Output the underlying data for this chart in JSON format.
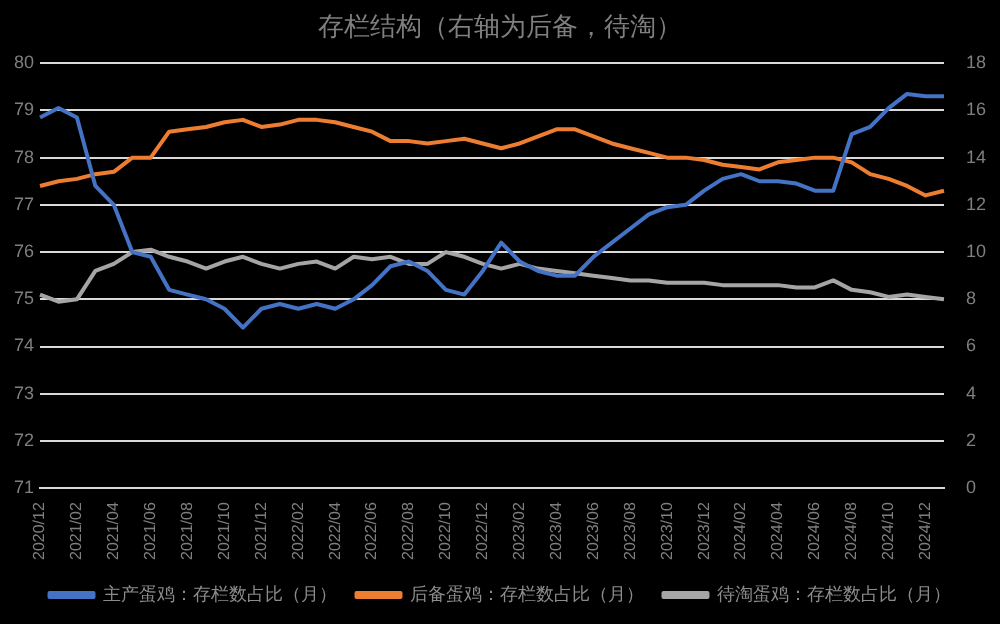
{
  "chart_data": {
    "type": "line",
    "title": "存栏结构（右轴为后备，待淘）",
    "categories": [
      "2020/12",
      null,
      "2021/02",
      null,
      "2021/04",
      null,
      "2021/06",
      null,
      "2021/08",
      null,
      "2021/10",
      null,
      "2021/12",
      null,
      "2022/02",
      null,
      "2022/04",
      null,
      "2022/06",
      null,
      "2022/08",
      null,
      "2022/10",
      null,
      "2022/12",
      null,
      "2023/02",
      null,
      "2023/04",
      null,
      "2023/06",
      null,
      "2023/08",
      null,
      "2023/10",
      null,
      "2023/12",
      null,
      "2024/02",
      null,
      "2024/04",
      null,
      "2024/06",
      null,
      "2024/08",
      null,
      "2024/10",
      null,
      "2024/12",
      null
    ],
    "series": [
      {
        "name": "主产蛋鸡：存栏数占比（月）",
        "color": "#4472c4",
        "values": [
          78.85,
          79.05,
          78.85,
          77.4,
          77.0,
          76.0,
          75.9,
          75.2,
          75.1,
          75.0,
          74.8,
          74.4,
          74.8,
          74.9,
          74.8,
          74.9,
          74.8,
          75.0,
          75.3,
          75.7,
          75.8,
          75.6,
          75.2,
          75.1,
          75.6,
          76.2,
          75.8,
          75.6,
          75.5,
          75.5,
          75.9,
          76.2,
          76.5,
          76.8,
          76.95,
          77.0,
          77.3,
          77.55,
          77.65,
          77.5,
          77.5,
          77.45,
          77.3,
          77.3,
          78.5,
          78.65,
          79.05,
          79.35,
          79.3,
          79.3
        ]
      },
      {
        "name": "后备蛋鸡：存栏数占比（月）",
        "color": "#ed7d31",
        "axis": "y2",
        "values": [
          12.8,
          13.0,
          13.1,
          13.3,
          13.4,
          14.0,
          14.0,
          15.1,
          15.2,
          15.3,
          15.5,
          15.6,
          15.3,
          15.4,
          15.6,
          15.6,
          15.5,
          15.3,
          15.1,
          14.7,
          14.7,
          14.6,
          14.7,
          14.8,
          14.6,
          14.4,
          14.6,
          14.9,
          15.2,
          15.2,
          14.9,
          14.6,
          14.4,
          14.2,
          14.0,
          14.0,
          13.9,
          13.7,
          13.6,
          13.5,
          13.8,
          13.9,
          14.0,
          14.0,
          13.8,
          13.3,
          13.1,
          12.8,
          12.4,
          12.6
        ]
      },
      {
        "name": "待淘蛋鸡：存栏数占比（月）",
        "color": "#a5a5a5",
        "axis": "y2",
        "values": [
          8.2,
          7.9,
          8.0,
          9.2,
          9.5,
          10.0,
          10.1,
          9.8,
          9.6,
          9.3,
          9.6,
          9.8,
          9.5,
          9.3,
          9.5,
          9.6,
          9.3,
          9.8,
          9.7,
          9.8,
          9.5,
          9.5,
          10.0,
          9.8,
          9.5,
          9.3,
          9.5,
          9.3,
          9.2,
          9.1,
          9.0,
          8.9,
          8.8,
          8.8,
          8.7,
          8.7,
          8.7,
          8.6,
          8.6,
          8.6,
          8.6,
          8.5,
          8.5,
          8.8,
          8.4,
          8.3,
          8.1,
          8.2,
          8.1,
          8.0
        ]
      }
    ],
    "ylim": [
      71,
      80
    ],
    "yticks": [
      71,
      72,
      73,
      74,
      75,
      76,
      77,
      78,
      79,
      80
    ],
    "y2lim": [
      0,
      18
    ],
    "y2ticks": [
      0,
      2,
      4,
      6,
      8,
      10,
      12,
      14,
      16,
      18
    ],
    "grid": "y",
    "legend": "bottom",
    "marker": "none",
    "line_style": "solid"
  }
}
